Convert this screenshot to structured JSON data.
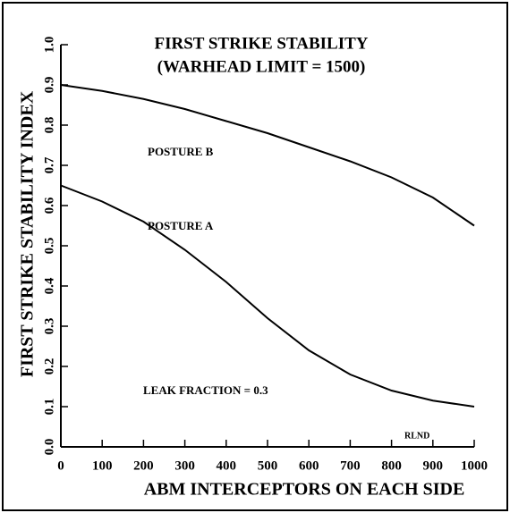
{
  "chart_data": {
    "type": "line",
    "title": "FIRST STRIKE STABILITY",
    "subtitle": "(WARHEAD LIMIT = 1500)",
    "x_label": "ABM INTERCEPTORS ON EACH SIDE",
    "y_label": "FIRST STRIKE STABILITY INDEX",
    "annotations": [
      "POSTURE B",
      "POSTURE A",
      "LEAK FRACTION = 0.3",
      "RLND"
    ],
    "x": [
      0,
      100,
      200,
      300,
      400,
      500,
      600,
      700,
      800,
      900,
      1000
    ],
    "series": [
      {
        "name": "POSTURE B",
        "color": "#000000",
        "values": [
          0.9,
          0.885,
          0.865,
          0.84,
          0.81,
          0.78,
          0.745,
          0.71,
          0.67,
          0.62,
          0.55
        ]
      },
      {
        "name": "POSTURE A",
        "color": "#000000",
        "values": [
          0.65,
          0.61,
          0.56,
          0.49,
          0.41,
          0.32,
          0.24,
          0.18,
          0.14,
          0.115,
          0.1
        ]
      }
    ],
    "xlim": [
      0,
      1000
    ],
    "xticks": [
      0,
      100,
      200,
      300,
      400,
      500,
      600,
      700,
      800,
      900,
      1000
    ],
    "ylim": [
      0,
      1.0
    ],
    "yticks": [
      {
        "value": 0,
        "label": "0.0"
      },
      0.1,
      0.2,
      0.3,
      0.4,
      0.5,
      0.6,
      0.7,
      0.8,
      0.9,
      {
        "value": 1,
        "label": "1.0"
      }
    ],
    "grid": false
  }
}
